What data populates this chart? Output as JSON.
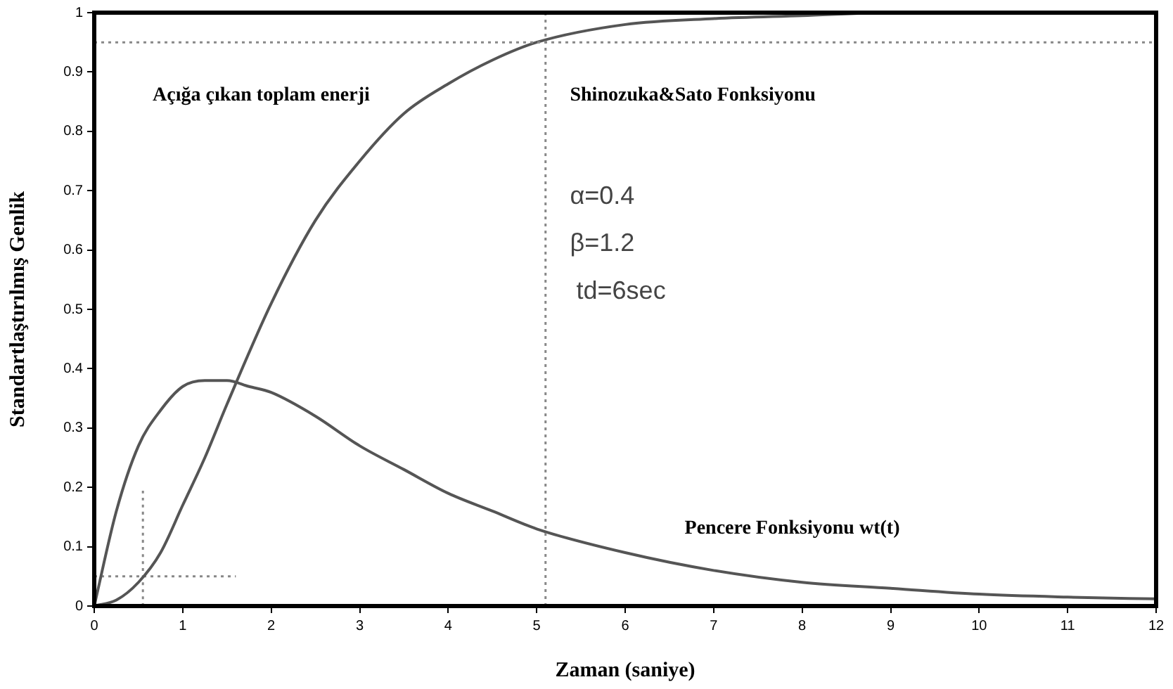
{
  "chart_data": {
    "type": "line",
    "xlabel": "Zaman (saniye)",
    "ylabel": "Standartlaştırılmış Genlik",
    "xlim": [
      0,
      12
    ],
    "xticks": [
      0,
      1,
      2,
      3,
      4,
      5,
      6,
      7,
      8,
      9,
      10,
      11,
      12
    ],
    "ylim": [
      0,
      1
    ],
    "yticks": [
      0,
      0.1,
      0.2,
      0.3,
      0.4,
      0.5,
      0.6,
      0.7,
      0.8,
      0.9,
      1
    ],
    "grid": false,
    "legend": false,
    "marker": "none",
    "series": [
      {
        "color": "#555555",
        "x": [
          0,
          0.25,
          0.5,
          0.75,
          1,
          1.25,
          1.5,
          1.75,
          2,
          2.5,
          3,
          3.5,
          4,
          4.5,
          5,
          6,
          7,
          8,
          9,
          10,
          11,
          12
        ],
        "values": [
          0,
          0.16,
          0.27,
          0.33,
          0.37,
          0.38,
          0.38,
          0.37,
          0.36,
          0.32,
          0.27,
          0.23,
          0.19,
          0.16,
          0.13,
          0.09,
          0.06,
          0.04,
          0.03,
          0.02,
          0.015,
          0.012
        ]
      },
      {
        "color": "#555555",
        "x": [
          0,
          0.25,
          0.5,
          0.75,
          1,
          1.25,
          1.5,
          2,
          2.5,
          3,
          3.5,
          4,
          4.5,
          5,
          6,
          7,
          8,
          9,
          10,
          12
        ],
        "values": [
          0,
          0.01,
          0.04,
          0.09,
          0.17,
          0.25,
          0.34,
          0.51,
          0.65,
          0.75,
          0.83,
          0.88,
          0.92,
          0.95,
          0.98,
          0.99,
          0.995,
          1,
          1,
          1
        ]
      },
      {
        "color": "#888888",
        "line_style": "dotted",
        "x": [
          0.55,
          0.55
        ],
        "values": [
          0,
          0.2
        ]
      },
      {
        "color": "#888888",
        "line_style": "dotted",
        "x": [
          0,
          1.6
        ],
        "values": [
          0.05,
          0.05
        ]
      }
    ],
    "ref_lines": [
      {
        "axis": "y",
        "value": 0.95,
        "color": "#888888",
        "line_style": "dotted"
      },
      {
        "axis": "x",
        "value": 5.1,
        "color": "#888888",
        "line_style": "dotted"
      }
    ],
    "annotations": [
      "Açığa çıkan toplam enerji",
      "Shinozuka&Sato Fonksiyonu",
      "Pencere Fonksiyonu wt(t)",
      "α=0.4",
      "β=1.2",
      "td=6sec"
    ]
  }
}
